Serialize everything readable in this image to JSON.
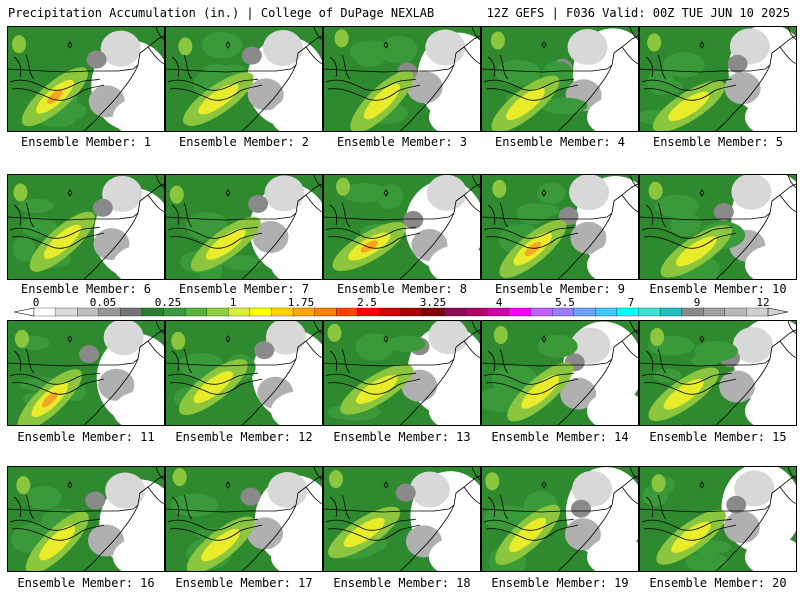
{
  "header": {
    "title": "Precipitation Accumulation (in.) | College of DuPage NEXLAB",
    "run_info": "12Z GEFS | F036 Valid: 00Z TUE JUN 10 2025"
  },
  "colors": {
    "background": "#ffffff",
    "base_green": "#2f8a2f",
    "light_green": "#3a9a3a",
    "lime": "#8cc63f",
    "yellow": "#e8ec2a",
    "orange": "#f5a623",
    "white_nil": "#ffffff",
    "grey_light": "#d8d8d8",
    "grey_mid": "#b0b0b0",
    "grey_dark": "#8a8a8a"
  },
  "panels": [
    {
      "label": "Ensemble Member: 1",
      "max_category": "orange"
    },
    {
      "label": "Ensemble Member: 2",
      "max_category": "yellow"
    },
    {
      "label": "Ensemble Member: 3",
      "max_category": "lime"
    },
    {
      "label": "Ensemble Member: 4",
      "max_category": "yellow"
    },
    {
      "label": "Ensemble Member: 5",
      "max_category": "yellow"
    },
    {
      "label": "Ensemble Member: 6",
      "max_category": "lime"
    },
    {
      "label": "Ensemble Member: 7",
      "max_category": "lime"
    },
    {
      "label": "Ensemble Member: 8",
      "max_category": "orange"
    },
    {
      "label": "Ensemble Member: 9",
      "max_category": "orange"
    },
    {
      "label": "Ensemble Member: 10",
      "max_category": "yellow"
    },
    {
      "label": "Ensemble Member: 11",
      "max_category": "orange"
    },
    {
      "label": "Ensemble Member: 12",
      "max_category": "yellow"
    },
    {
      "label": "Ensemble Member: 13",
      "max_category": "yellow"
    },
    {
      "label": "Ensemble Member: 14",
      "max_category": "yellow"
    },
    {
      "label": "Ensemble Member: 15",
      "max_category": "yellow"
    },
    {
      "label": "Ensemble Member: 16",
      "max_category": "yellow"
    },
    {
      "label": "Ensemble Member: 17",
      "max_category": "yellow"
    },
    {
      "label": "Ensemble Member: 18",
      "max_category": "lime"
    },
    {
      "label": "Ensemble Member: 19",
      "max_category": "yellow"
    },
    {
      "label": "Ensemble Member: 20",
      "max_category": "yellow"
    }
  ],
  "colorbar": {
    "labels": [
      "0",
      "0.05",
      "0.25",
      "1",
      "1.75",
      "2.5",
      "3.25",
      "4",
      "5.5",
      "7",
      "9",
      "12"
    ],
    "colors": [
      "#ffffff",
      "#d9d9d9",
      "#bdbdbd",
      "#969696",
      "#737373",
      "#2e7d32",
      "#3d9a3d",
      "#55b43a",
      "#8fcf3c",
      "#d7ef3b",
      "#ffff00",
      "#ffd000",
      "#ffa500",
      "#ff7f00",
      "#ff4500",
      "#ff0000",
      "#d40000",
      "#a80000",
      "#800000",
      "#8b0a50",
      "#b0006b",
      "#d100a8",
      "#ff00ff",
      "#c060ff",
      "#9a7cff",
      "#6fa0ff",
      "#40c8ff",
      "#00ffff",
      "#40e0d0",
      "#20c0c0",
      "#8a8a8a",
      "#a0a0a0",
      "#b8b8b8",
      "#d0d0d0"
    ]
  }
}
